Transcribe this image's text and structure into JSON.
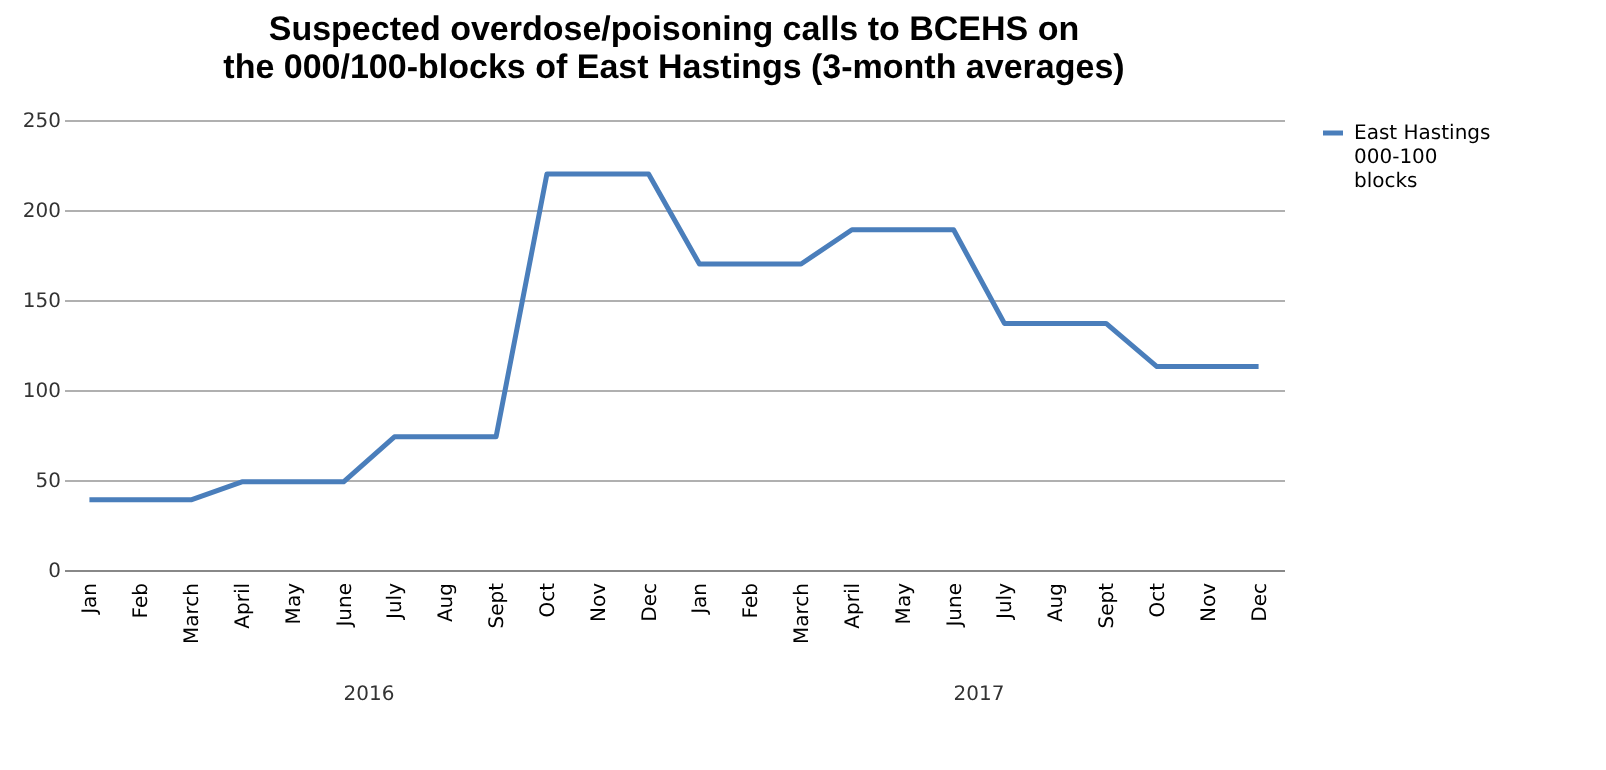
{
  "chart_data": {
    "type": "line",
    "title": "Suspected overdose/poisoning calls to  BCEHS on\nthe 000/100-blocks of East Hastings (3-month averages)",
    "categories": [
      "Jan",
      "Feb",
      "March",
      "April",
      "May",
      "June",
      "July",
      "Aug",
      "Sept",
      "Oct",
      "Nov",
      "Dec",
      "Jan",
      "Feb",
      "March",
      "April",
      "May",
      "June",
      "July",
      "Aug",
      "Sept",
      "Oct",
      "Nov",
      "Dec"
    ],
    "series": [
      {
        "name": "East Hastings 000-100 blocks",
        "color": "#4a7ebb",
        "values": [
          39,
          39,
          39,
          49,
          49,
          49,
          74,
          74,
          74,
          220,
          220,
          220,
          170,
          170,
          170,
          189,
          189,
          189,
          137,
          137,
          137,
          113,
          113,
          113
        ]
      }
    ],
    "annotations": [
      "2016",
      "2017"
    ],
    "ylim": [
      0,
      250
    ],
    "yticks": [
      0,
      50,
      100,
      150,
      200,
      250
    ],
    "grid": "y",
    "legend": "right",
    "marker": "none",
    "line_style": "solid"
  }
}
